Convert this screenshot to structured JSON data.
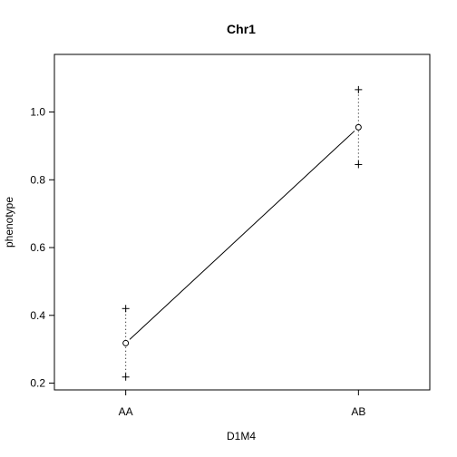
{
  "chart_data": {
    "type": "line",
    "title": "Chr1",
    "xlabel": "D1M4",
    "ylabel": "phenotype",
    "categories": [
      "AA",
      "AB"
    ],
    "ylim": [
      0.18,
      1.17
    ],
    "yticks": [
      "0.2",
      "0.4",
      "0.6",
      "0.8",
      "1.0"
    ],
    "grid": false,
    "series": [
      {
        "means": [
          0.318,
          0.955
        ],
        "lower": [
          0.218,
          0.845
        ],
        "upper": [
          0.42,
          1.066
        ]
      }
    ],
    "colors": {
      "line": "#000000",
      "frame": "#000000"
    }
  }
}
